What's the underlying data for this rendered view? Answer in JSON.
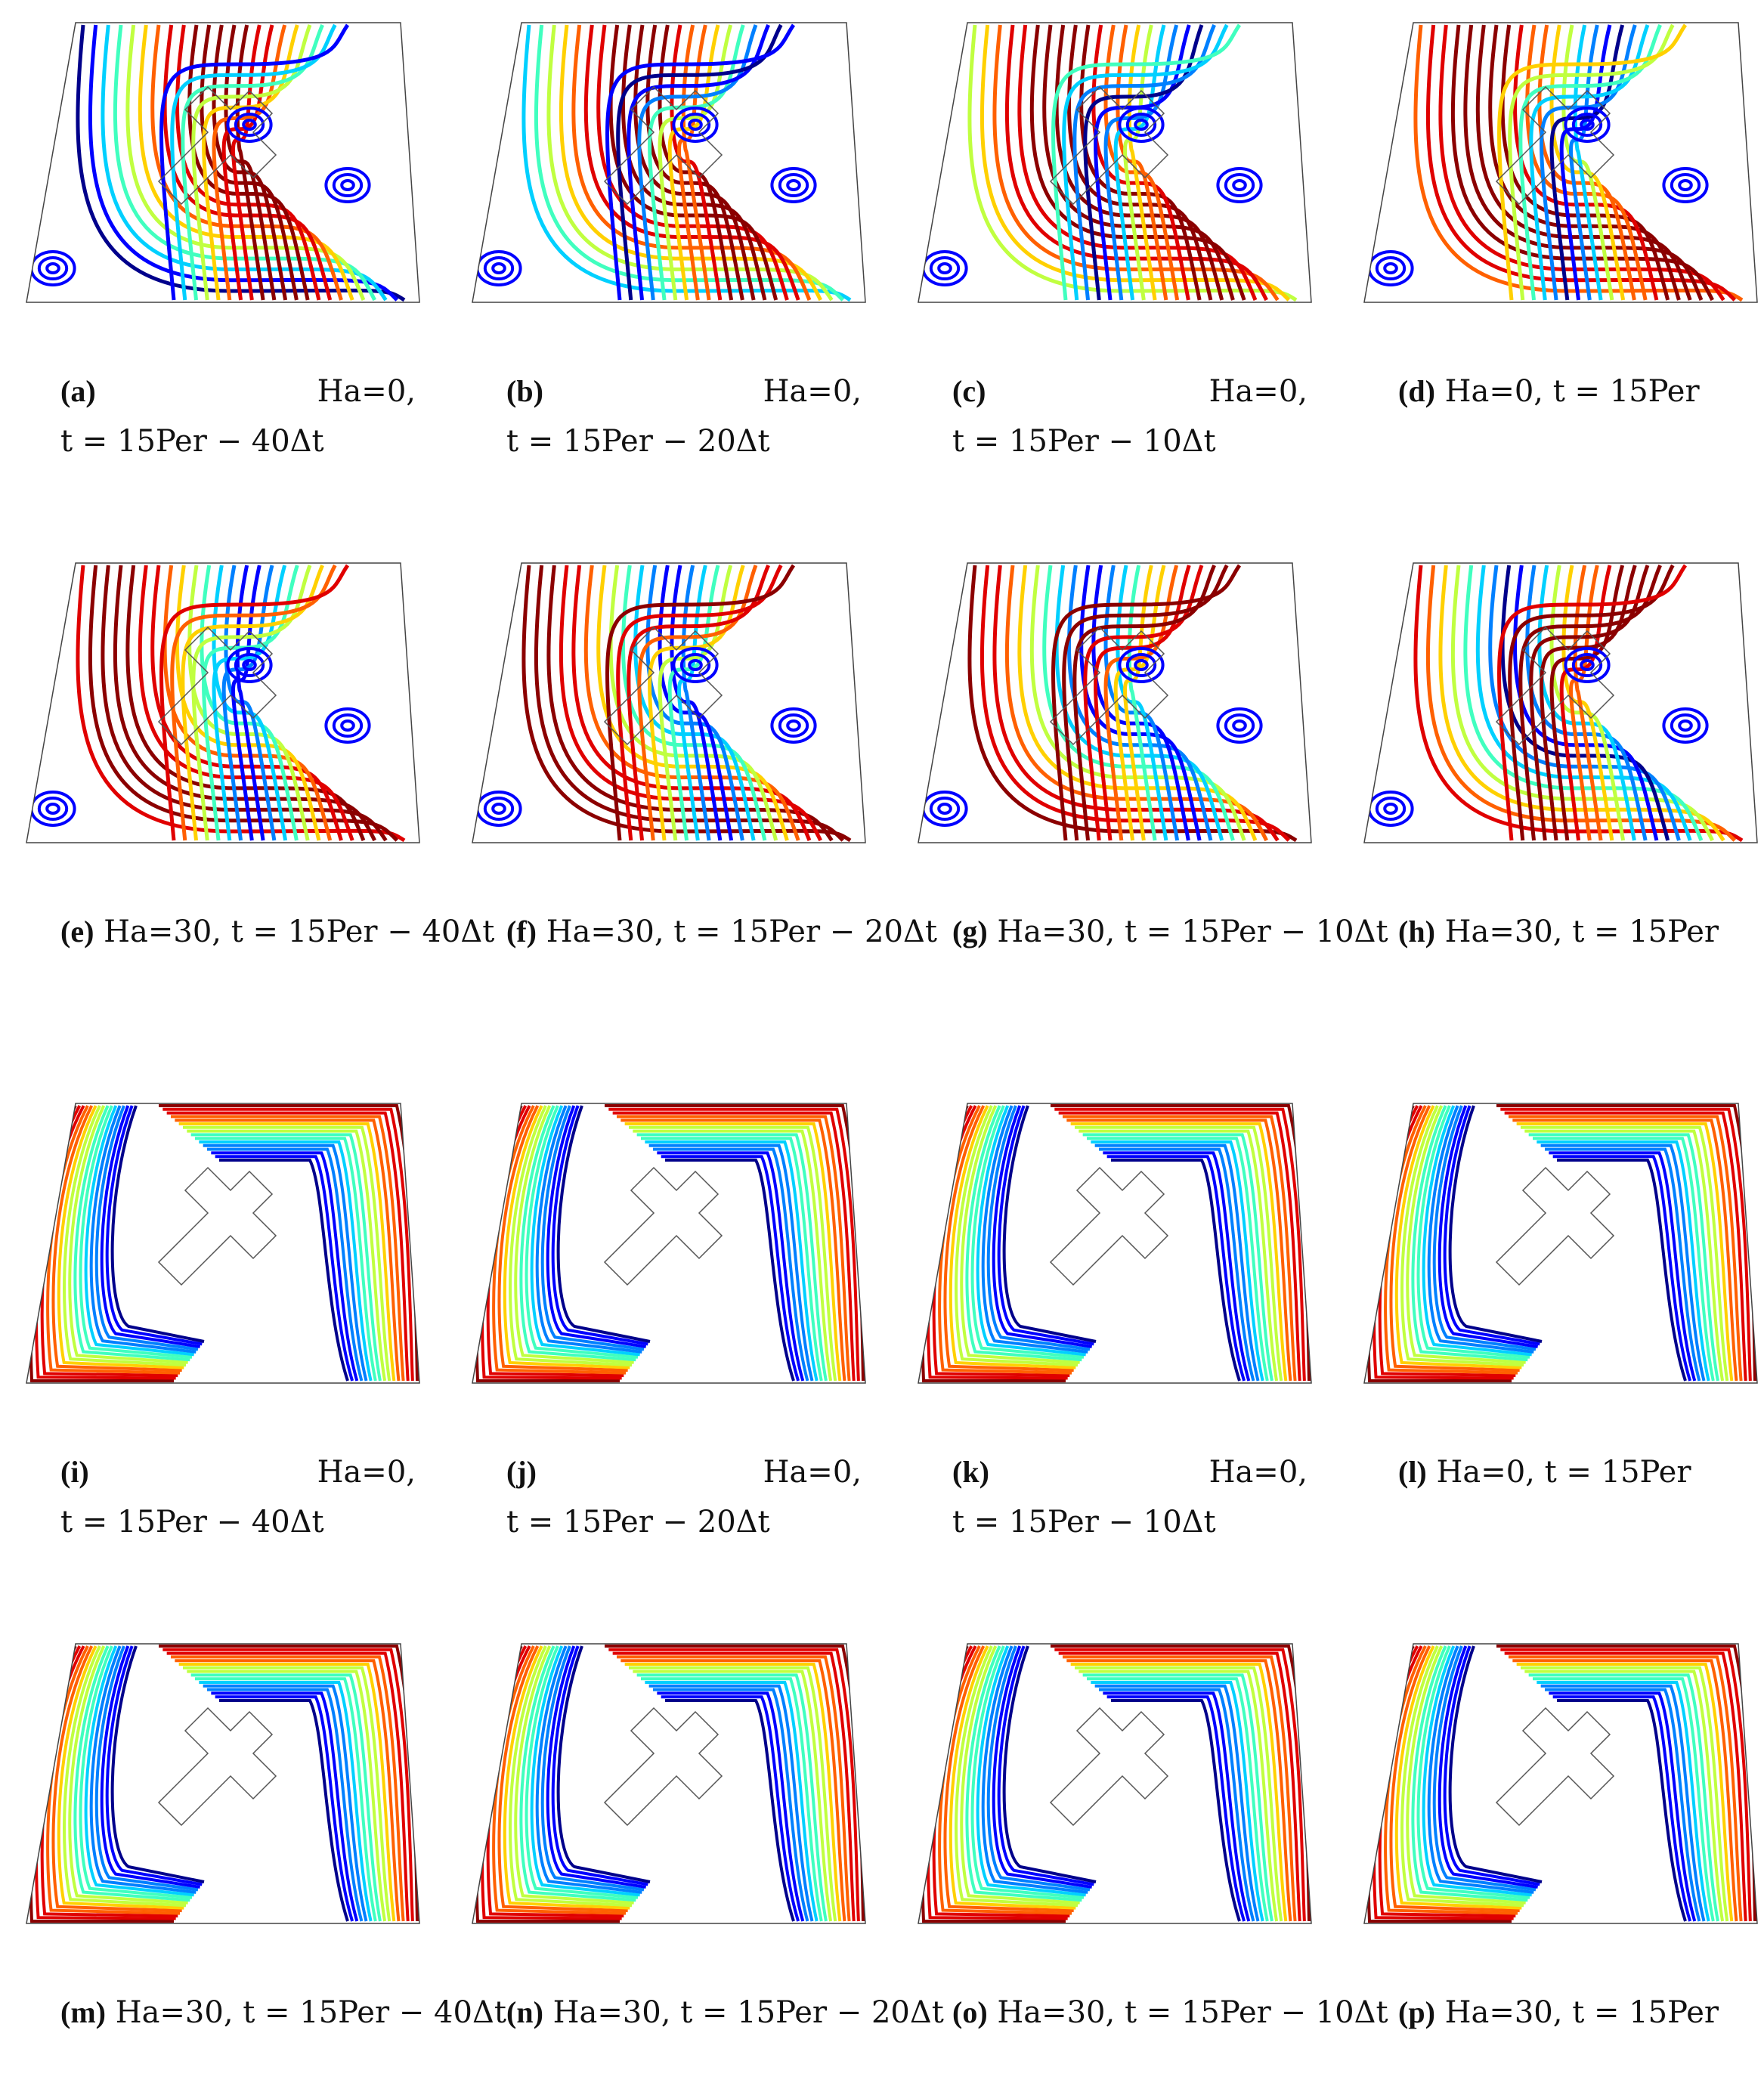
{
  "panels": [
    {
      "tag": "(a)",
      "ha": "Ha=0,",
      "time": "t = 15Per − 40Δt",
      "style": "split-wide",
      "field": "stream"
    },
    {
      "tag": "(b)",
      "ha": "Ha=0,",
      "time": "t = 15Per − 20Δt",
      "style": "split-wide",
      "field": "stream"
    },
    {
      "tag": "(c)",
      "ha": "Ha=0,",
      "time": "t = 15Per − 10Δt",
      "style": "split-wide",
      "field": "stream"
    },
    {
      "tag": "(d)",
      "ha": "Ha=0,",
      "time": "t = 15Per",
      "style": "single",
      "field": "stream"
    },
    {
      "tag": "(e)",
      "ha": "Ha=30,",
      "time": "t = 15Per − 40Δt",
      "style": "split-t",
      "field": "stream"
    },
    {
      "tag": "(f)",
      "ha": "Ha=30,",
      "time": "t = 15Per − 20Δt",
      "style": "split-t",
      "field": "stream"
    },
    {
      "tag": "(g)",
      "ha": "Ha=30,",
      "time": "t = 15Per − 10Δt",
      "style": "split-t",
      "field": "stream"
    },
    {
      "tag": "(h)",
      "ha": "Ha=30,",
      "time": "t = 15Per",
      "style": "split-t",
      "field": "stream"
    },
    {
      "tag": "(i)",
      "ha": "Ha=0,",
      "time": "t = 15Per − 40Δt",
      "style": "split-wide",
      "field": "isotherm"
    },
    {
      "tag": "(j)",
      "ha": "Ha=0,",
      "time": "t = 15Per − 20Δt",
      "style": "split-wide",
      "field": "isotherm"
    },
    {
      "tag": "(k)",
      "ha": "Ha=0,",
      "time": "t = 15Per − 10Δt",
      "style": "split-wide",
      "field": "isotherm"
    },
    {
      "tag": "(l)",
      "ha": "Ha=0,",
      "time": "t = 15Per",
      "style": "single",
      "field": "isotherm"
    },
    {
      "tag": "(m)",
      "ha": "Ha=30,",
      "time": "t = 15Per − 40Δt",
      "style": "split-t",
      "field": "isotherm"
    },
    {
      "tag": "(n)",
      "ha": "Ha=30,",
      "time": "t = 15Per − 20Δt",
      "style": "split-t",
      "field": "isotherm"
    },
    {
      "tag": "(o)",
      "ha": "Ha=30,",
      "time": "t = 15Per − 10Δt",
      "style": "split-t",
      "field": "isotherm"
    },
    {
      "tag": "(p)",
      "ha": "Ha=30,",
      "time": "t = 15Per",
      "style": "split-t",
      "field": "isotherm"
    }
  ],
  "colormap": [
    "#00008b",
    "#0000ff",
    "#0080ff",
    "#00d0ff",
    "#40ffbf",
    "#c0ff40",
    "#ffd000",
    "#ff6000",
    "#e00000",
    "#8b0000"
  ]
}
